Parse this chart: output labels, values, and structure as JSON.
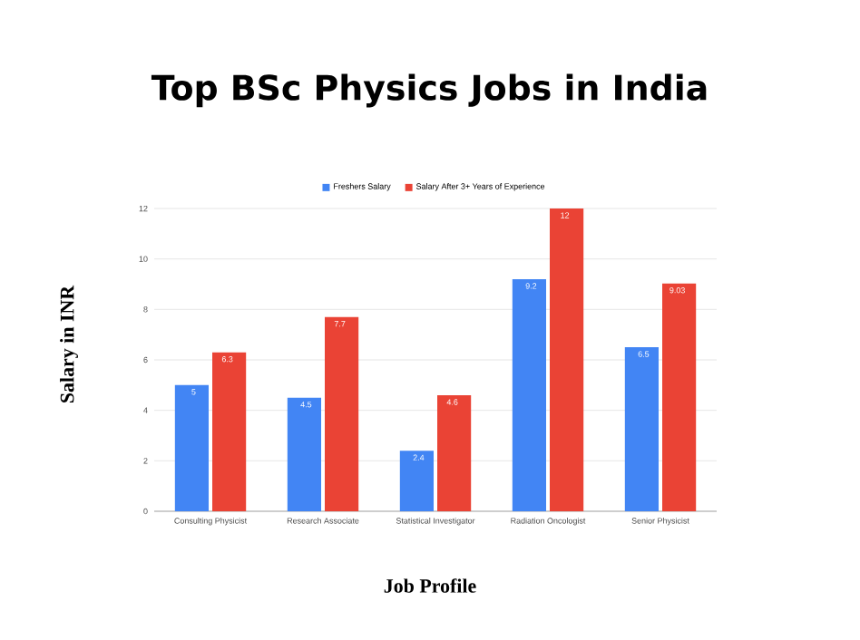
{
  "chart_data": {
    "type": "bar",
    "title": "Top BSc Physics Jobs in India",
    "xlabel": "Job Profile",
    "ylabel": "Salary in INR",
    "categories": [
      "Consulting Physicist",
      "Research Associate",
      "Statistical Investigator",
      "Radiation Oncologist",
      "Senior Physicist"
    ],
    "series": [
      {
        "name": "Freshers Salary",
        "color": "#4285f4",
        "values": [
          5,
          4.5,
          2.4,
          9.2,
          6.5
        ],
        "value_labels": [
          "5",
          "4.5",
          "2.4",
          "9.2",
          "6.5"
        ]
      },
      {
        "name": "Salary After 3+ Years of Experience",
        "color": "#ea4335",
        "values": [
          6.3,
          7.7,
          4.6,
          12,
          9.03
        ],
        "value_labels": [
          "6.3",
          "7.7",
          "4.6",
          "12",
          "9.03"
        ]
      }
    ],
    "ylim": [
      0,
      12
    ],
    "yticks": [
      0,
      2,
      4,
      6,
      8,
      10,
      12
    ],
    "grid": "y",
    "legend": "top"
  }
}
